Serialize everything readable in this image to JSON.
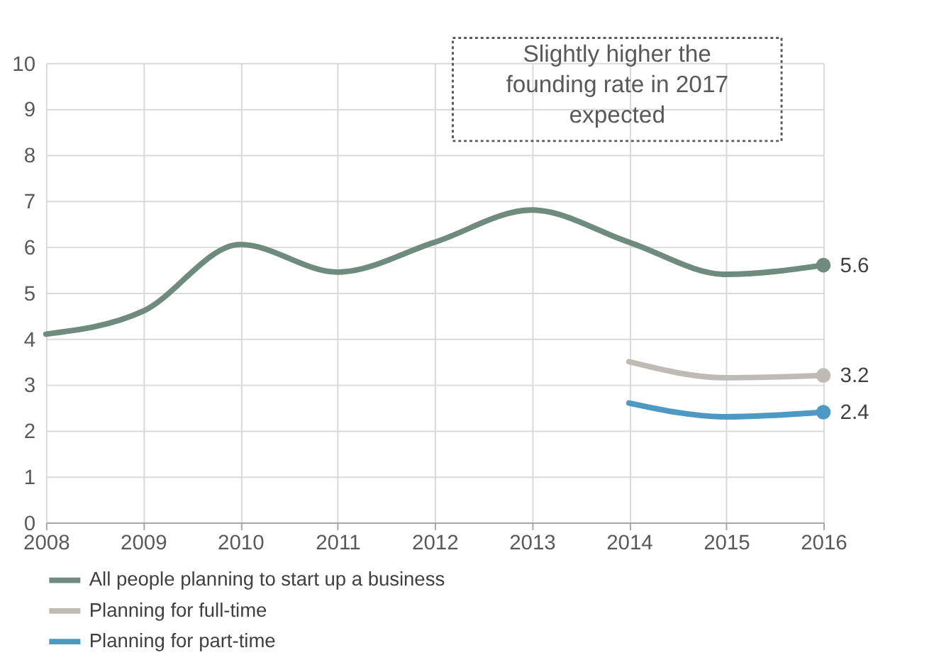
{
  "chart_data": {
    "type": "line",
    "x": [
      2008,
      2009,
      2010,
      2011,
      2012,
      2013,
      2014,
      2015,
      2016
    ],
    "series": [
      {
        "name": "All people planning to start up a business",
        "color": "#6e8b7d",
        "values": [
          4.1,
          4.6,
          6.05,
          5.45,
          6.1,
          6.8,
          6.1,
          5.4,
          5.6
        ],
        "value_labels": [
          null,
          null,
          null,
          null,
          null,
          null,
          null,
          null,
          "5.6"
        ]
      },
      {
        "name": "Planning for full-time",
        "color": "#c0bab5",
        "values": [
          null,
          null,
          null,
          null,
          null,
          null,
          3.5,
          3.15,
          3.2
        ],
        "value_labels": [
          null,
          null,
          null,
          null,
          null,
          null,
          null,
          null,
          "3.2"
        ]
      },
      {
        "name": "Planning for part-time",
        "color": "#4e98c4",
        "values": [
          null,
          null,
          null,
          null,
          null,
          null,
          2.6,
          2.3,
          2.4
        ],
        "value_labels": [
          null,
          null,
          null,
          null,
          null,
          null,
          null,
          null,
          "2.4"
        ]
      }
    ],
    "xlim": [
      2008,
      2016
    ],
    "xticks": [
      2008,
      2009,
      2010,
      2011,
      2012,
      2013,
      2014,
      2015,
      2016
    ],
    "ylim": [
      0,
      10
    ],
    "yticks": [
      0,
      1,
      2,
      3,
      4,
      5,
      6,
      7,
      8,
      9,
      10
    ],
    "grid": true,
    "legend": "bottom",
    "marker": "none",
    "line_style": "solid",
    "annotations": [
      "Slightly higher the founding rate in 2017 expected"
    ]
  }
}
